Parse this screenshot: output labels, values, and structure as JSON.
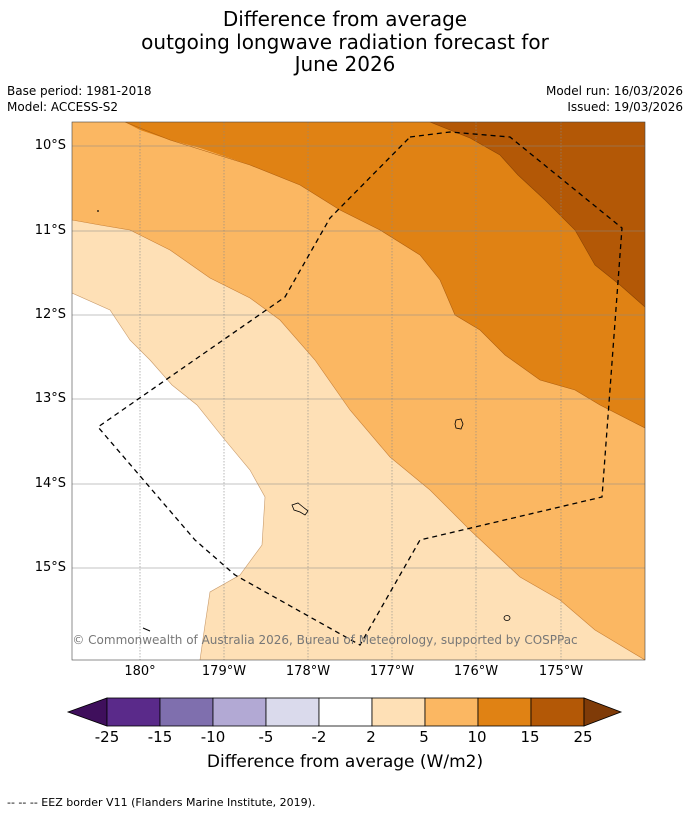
{
  "title": {
    "line1": "Difference from average",
    "line2": "outgoing longwave radiation forecast for",
    "line3": "June 2026"
  },
  "meta": {
    "base_period": "Base period: 1981-2018",
    "model": "Model: ACCESS-S2",
    "model_run": "Model run: 16/03/2026",
    "issued": "Issued: 19/03/2026"
  },
  "map": {
    "latitudes": [
      "10°S",
      "11°S",
      "12°S",
      "13°S",
      "14°S",
      "15°S"
    ],
    "longitudes": [
      "180°",
      "179°W",
      "178°W",
      "177°W",
      "176°W",
      "175°W"
    ],
    "copyright": "© Commonwealth of Australia 2026, Bureau of Meteorology, supported by COSPPac",
    "land_color": "#000000",
    "eez_color": "#000000"
  },
  "colorbar": {
    "tick_labels": [
      "-25",
      "-15",
      "-10",
      "-5",
      "-2",
      "2",
      "5",
      "10",
      "15",
      "25"
    ],
    "colors": [
      "#3f0f5c",
      "#5a2a8a",
      "#7f6fae",
      "#b2a9d4",
      "#dadaec",
      "#ffffff",
      "#fee0b6",
      "#fbb762",
      "#e08214",
      "#b35806",
      "#7f3b08"
    ],
    "label": "Difference from average (W/m2)"
  },
  "footnote": "--  --  -- EEZ border V11 (Flanders Marine Institute, 2019)."
}
